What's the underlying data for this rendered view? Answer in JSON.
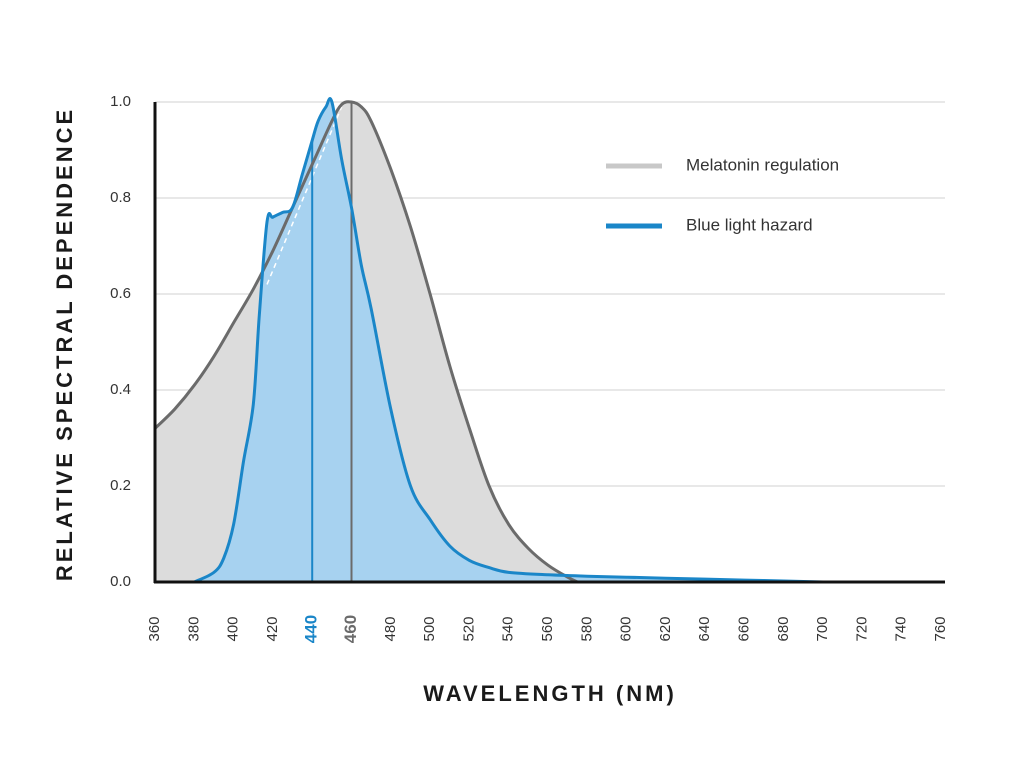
{
  "chart_data": {
    "type": "area",
    "title": "",
    "xlabel": "WAVELENGTH (NM)",
    "ylabel": "RELATIVE SPECTRAL DEPENDENCE",
    "xlim": [
      360,
      760
    ],
    "ylim": [
      0,
      1.0
    ],
    "xticks": [
      "360",
      "380",
      "400",
      "420",
      "440",
      "460",
      "480",
      "500",
      "520",
      "540",
      "560",
      "580",
      "600",
      "620",
      "640",
      "660",
      "680",
      "700",
      "720",
      "740",
      "760"
    ],
    "yticks": [
      "0.0",
      "0.2",
      "0.4",
      "0.6",
      "0.8",
      "1.0"
    ],
    "grid": "horizontal",
    "legend_position": "top-right",
    "highlighted_ticks": [
      {
        "value": 440,
        "label": "440",
        "color": "#1a86c8"
      },
      {
        "value": 460,
        "label": "460",
        "color": "#6b6b6b"
      }
    ],
    "series": [
      {
        "name": "Melatonin regulation",
        "color": "#6b6b6b",
        "fill": "#dcdcdc",
        "legend_color": "#c8c8c8",
        "x": [
          360,
          370,
          380,
          390,
          400,
          410,
          420,
          430,
          440,
          450,
          455,
          460,
          465,
          470,
          480,
          490,
          500,
          510,
          520,
          530,
          540,
          550,
          560,
          570,
          575
        ],
        "y": [
          0.32,
          0.36,
          0.41,
          0.47,
          0.54,
          0.61,
          0.69,
          0.78,
          0.87,
          0.96,
          0.995,
          1.0,
          0.99,
          0.96,
          0.86,
          0.74,
          0.6,
          0.45,
          0.32,
          0.2,
          0.12,
          0.07,
          0.035,
          0.01,
          0.0
        ]
      },
      {
        "name": "Blue light hazard",
        "color": "#1a86c8",
        "fill": "#a7d2f0",
        "legend_color": "#1a86c8",
        "x": [
          380,
          390,
          395,
          400,
          405,
          410,
          413,
          417,
          420,
          425,
          430,
          435,
          440,
          443,
          447,
          450,
          455,
          460,
          465,
          470,
          480,
          490,
          500,
          510,
          520,
          530,
          540,
          560,
          580,
          600,
          620,
          640,
          660,
          680,
          700
        ],
        "y": [
          0.0,
          0.02,
          0.05,
          0.12,
          0.25,
          0.37,
          0.55,
          0.75,
          0.76,
          0.77,
          0.78,
          0.85,
          0.92,
          0.96,
          0.99,
          1.0,
          0.88,
          0.78,
          0.66,
          0.57,
          0.36,
          0.2,
          0.13,
          0.075,
          0.045,
          0.03,
          0.02,
          0.015,
          0.012,
          0.01,
          0.008,
          0.006,
          0.004,
          0.002,
          0.0
        ]
      }
    ],
    "annotations": [
      {
        "type": "dashed-line",
        "color": "#ffffff",
        "from": [
          417,
          0.62
        ],
        "to": [
          455,
          0.99
        ]
      },
      {
        "type": "vertical-line",
        "x": 440,
        "y_to": 0.92,
        "color": "#1a86c8"
      },
      {
        "type": "vertical-line",
        "x": 460,
        "y_to": 1.0,
        "color": "#6b6b6b"
      }
    ]
  }
}
